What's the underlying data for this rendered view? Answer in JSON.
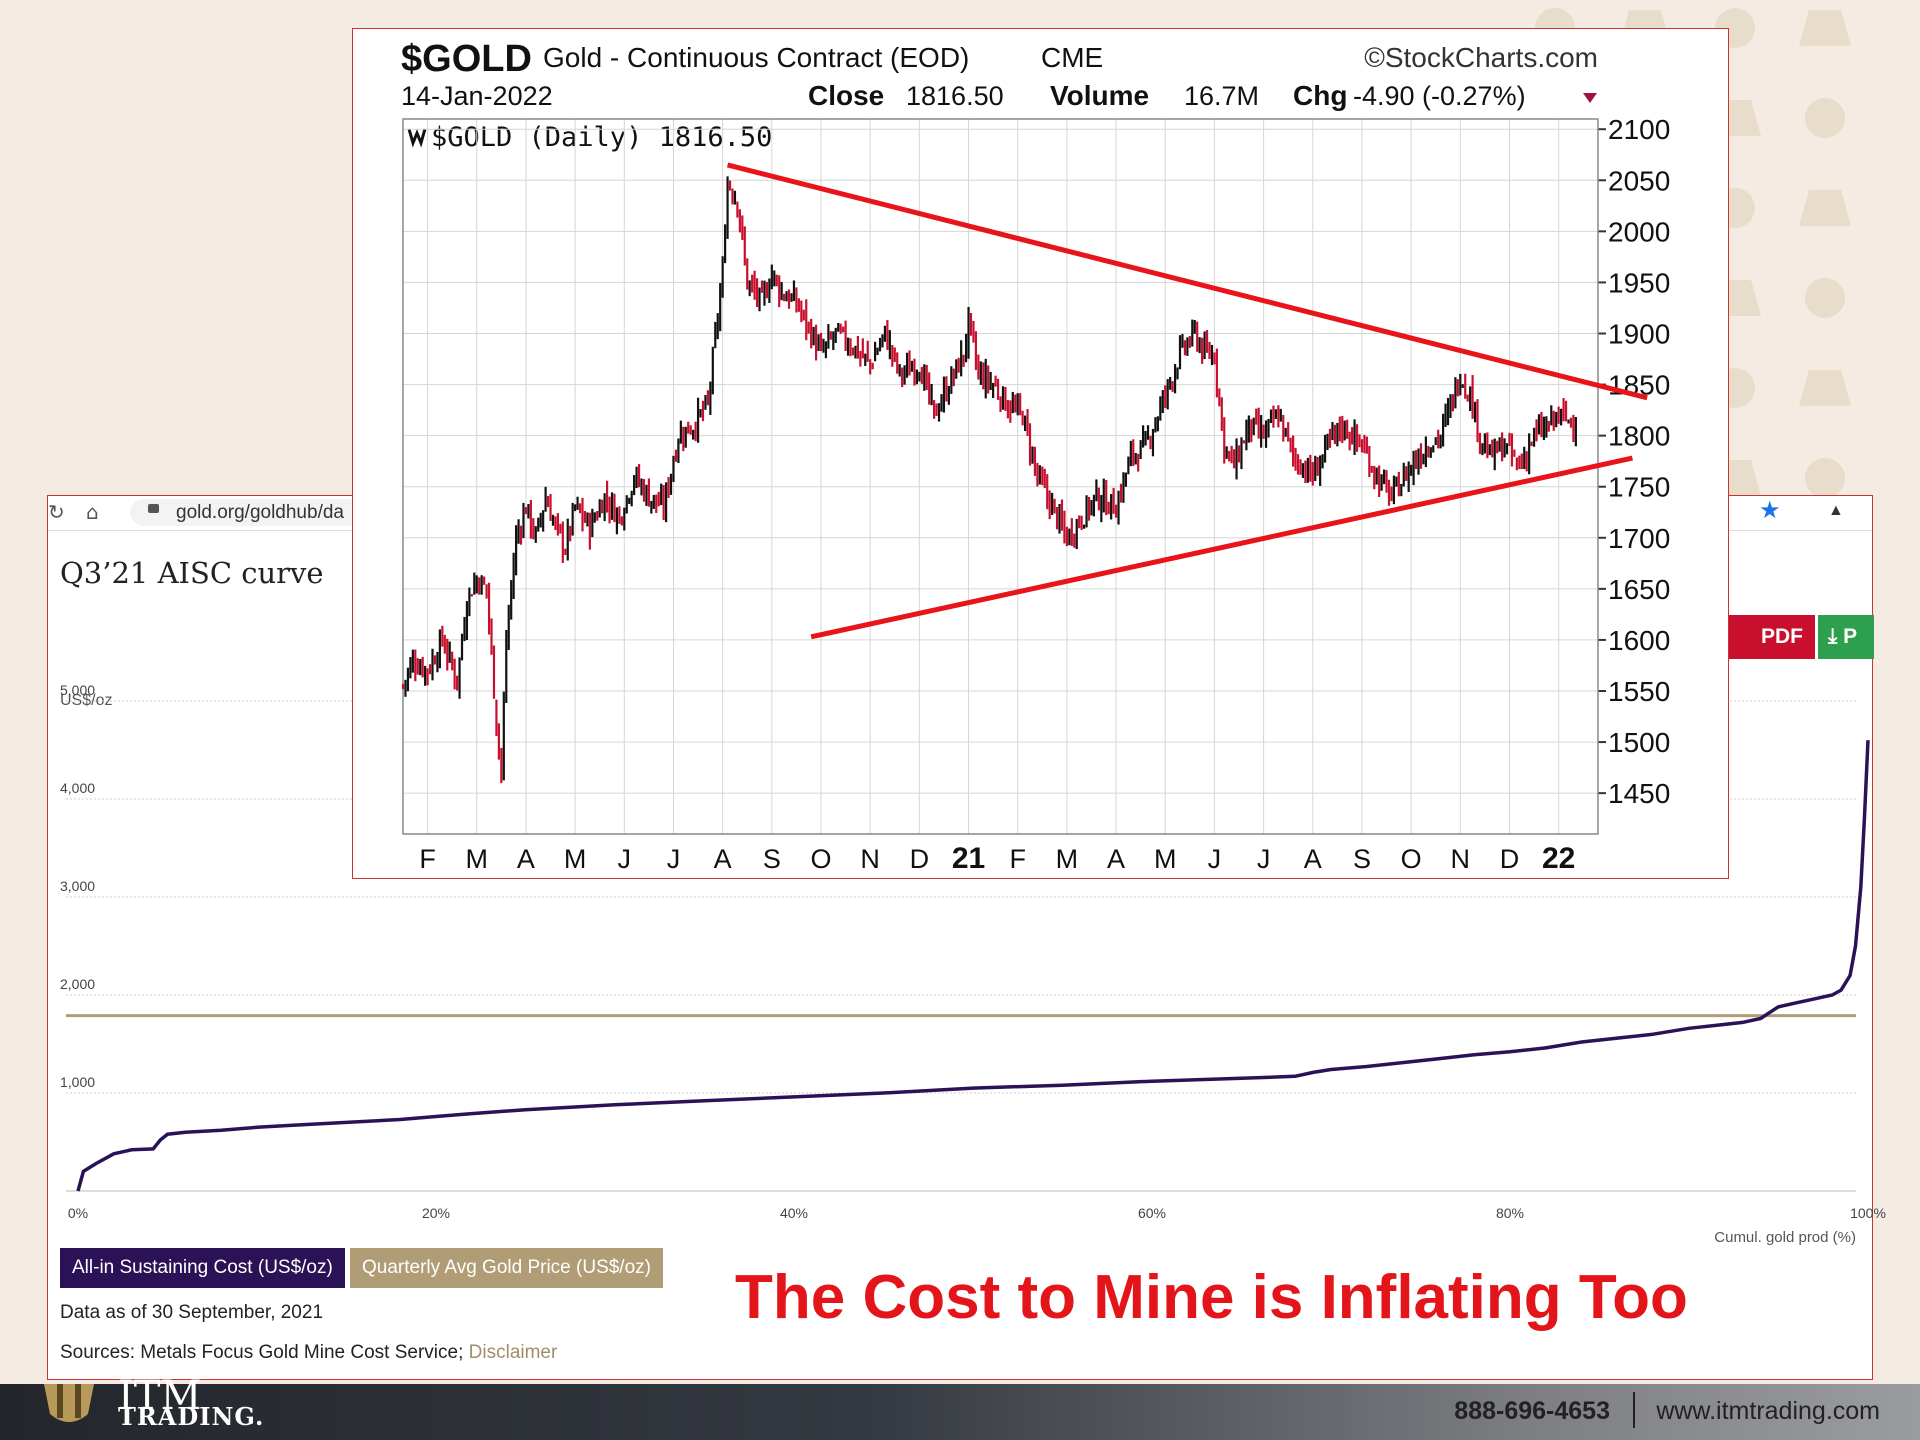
{
  "browser": {
    "url": "gold.org/goldhub/da"
  },
  "aisc": {
    "title": "Q3’21 AISC curve",
    "pdf_label": "PDF",
    "export_label": "P",
    "legend_aisc": "All-in Sustaining Cost (US$/oz)",
    "legend_price": "Quarterly Avg Gold Price (US$/oz)",
    "data_as_of": "Data as of 30 September, 2021",
    "sources_prefix": "Sources: Metals Focus Gold Mine Cost Service; ",
    "disclaimer_label": "Disclaimer"
  },
  "headline": "The Cost to Mine is Inflating Too",
  "gold": {
    "ticker": "$GOLD",
    "name": "Gold - Continuous Contract (EOD)",
    "exchange": "CME",
    "source": "©StockCharts.com",
    "date": "14-Jan-2022",
    "close_label": "Close",
    "close_value": "1816.50",
    "volume_label": "Volume",
    "volume_value": "16.7M",
    "chg_label": "Chg",
    "chg_value": "-4.90 (-0.27%)",
    "legend": "$GOLD (Daily) 1816.50"
  },
  "footer": {
    "logo_text": "ITM",
    "logo_sub": "TRADING.",
    "phone": "888-696-4653",
    "website": "www.itmtrading.com"
  },
  "colors": {
    "aisc_line": "#2b1256",
    "price_line": "#b09d76",
    "trendline": "#e8141a",
    "candle_up": "#111111",
    "candle_down": "#c8102e",
    "headline": "#e3151a"
  },
  "chart_data": [
    {
      "type": "line",
      "title": "Q3’21 AISC curve",
      "ylabel": "US$/oz",
      "xlabel": "Cumul. gold prod (%)",
      "ylim": [
        0,
        5000
      ],
      "xlim": [
        0,
        100
      ],
      "yticks": [
        "5,000",
        "4,000",
        "3,000",
        "2,000",
        "1,000"
      ],
      "xticks": [
        "0%",
        "20%",
        "40%",
        "60%",
        "80%",
        "100%"
      ],
      "series": [
        {
          "name": "All-in Sustaining Cost (US$/oz)",
          "x": [
            0,
            0.3,
            1,
            2,
            3,
            4.2,
            4.6,
            5,
            6,
            8,
            10,
            12,
            15,
            18,
            20,
            22,
            25,
            27,
            30,
            35,
            40,
            45,
            50,
            55,
            60,
            65,
            68,
            69,
            70,
            72,
            74,
            76,
            78,
            80,
            82,
            84,
            86,
            88,
            90,
            92,
            93,
            94,
            94.5,
            95,
            96,
            97,
            98,
            98.5,
            99,
            99.3,
            99.6,
            99.8,
            100
          ],
          "values": [
            0,
            200,
            280,
            380,
            420,
            430,
            520,
            580,
            600,
            620,
            650,
            670,
            700,
            730,
            760,
            790,
            830,
            850,
            880,
            920,
            960,
            1000,
            1050,
            1080,
            1120,
            1150,
            1170,
            1210,
            1240,
            1270,
            1310,
            1350,
            1390,
            1420,
            1460,
            1520,
            1560,
            1600,
            1660,
            1700,
            1720,
            1760,
            1820,
            1880,
            1920,
            1960,
            2000,
            2050,
            2200,
            2500,
            3100,
            3800,
            4600
          ]
        },
        {
          "name": "Quarterly Avg Gold Price (US$/oz)",
          "x": [
            0,
            100
          ],
          "values": [
            1790,
            1790
          ]
        }
      ]
    },
    {
      "type": "candlestick",
      "title": "$GOLD (Daily) 1816.50",
      "ylim": [
        1410,
        2110
      ],
      "yticks": [
        2100,
        2050,
        2000,
        1950,
        1900,
        1850,
        1800,
        1750,
        1700,
        1650,
        1600,
        1550,
        1500,
        1450
      ],
      "xticks": [
        "F",
        "M",
        "A",
        "M",
        "J",
        "J",
        "A",
        "S",
        "O",
        "N",
        "D",
        "21",
        "F",
        "M",
        "A",
        "M",
        "J",
        "J",
        "A",
        "S",
        "O",
        "N",
        "D",
        "22"
      ],
      "x_month_index": [
        0,
        1,
        2,
        3,
        4,
        5,
        6,
        7,
        8,
        9,
        10,
        11,
        12,
        13,
        14,
        15,
        16,
        17,
        18,
        19,
        20,
        21,
        22,
        23
      ],
      "close_path_months": [
        -0.5,
        -0.3,
        0,
        0.3,
        0.6,
        0.8,
        1,
        1.2,
        1.4,
        1.5,
        1.6,
        1.8,
        2,
        2.2,
        2.4,
        2.6,
        2.8,
        3,
        3.3,
        3.6,
        3.9,
        4.2,
        4.5,
        4.8,
        5.1,
        5.4,
        5.7,
        6,
        6.1,
        6.3,
        6.5,
        6.8,
        7,
        7.2,
        7.5,
        8,
        8.3,
        8.6,
        9,
        9.3,
        9.6,
        10,
        10.3,
        10.6,
        10.9,
        11,
        11.2,
        11.5,
        11.8,
        12.1,
        12.4,
        12.7,
        13,
        13.3,
        13.6,
        14,
        14.3,
        14.6,
        15,
        15.3,
        15.6,
        15.8,
        16,
        16.2,
        16.4,
        16.7,
        17,
        17.3,
        17.6,
        18,
        18.3,
        18.6,
        19,
        19.3,
        19.6,
        20,
        20.3,
        20.6,
        21,
        21.2,
        21.4,
        21.6,
        21.9,
        22.2,
        22.5,
        22.8,
        23,
        23.2,
        23.4
      ],
      "close_path_values": [
        1555,
        1580,
        1570,
        1600,
        1560,
        1640,
        1660,
        1650,
        1520,
        1470,
        1600,
        1700,
        1730,
        1700,
        1740,
        1710,
        1690,
        1730,
        1710,
        1740,
        1720,
        1760,
        1740,
        1730,
        1800,
        1810,
        1830,
        1960,
        2050,
        2030,
        1950,
        1930,
        1960,
        1940,
        1930,
        1880,
        1900,
        1890,
        1870,
        1900,
        1860,
        1870,
        1820,
        1850,
        1880,
        1910,
        1860,
        1850,
        1830,
        1820,
        1760,
        1730,
        1700,
        1720,
        1740,
        1730,
        1780,
        1790,
        1840,
        1880,
        1900,
        1880,
        1880,
        1790,
        1770,
        1810,
        1800,
        1820,
        1780,
        1760,
        1790,
        1810,
        1790,
        1760,
        1740,
        1770,
        1790,
        1800,
        1860,
        1840,
        1800,
        1780,
        1790,
        1770,
        1800,
        1810,
        1820,
        1815,
        1816.5
      ],
      "trendlines": [
        {
          "from": [
            6.1,
            2065
          ],
          "to": [
            24.8,
            1837
          ]
        },
        {
          "from": [
            7.8,
            1603
          ],
          "to": [
            24.5,
            1778
          ]
        }
      ]
    }
  ]
}
